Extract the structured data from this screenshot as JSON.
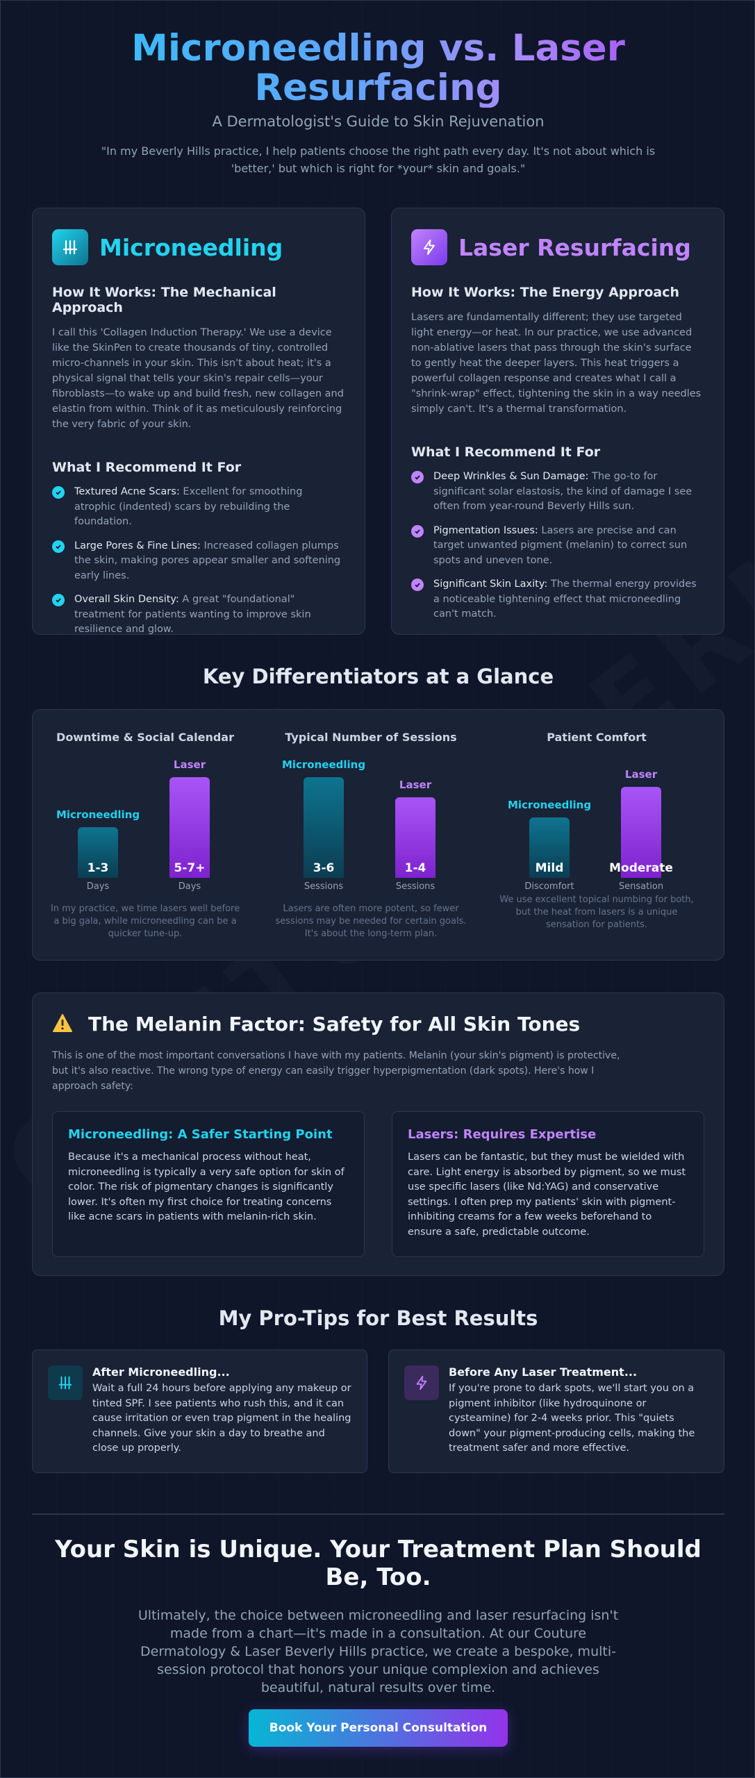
{
  "hero": {
    "title": "Microneedling vs. Laser Resurfacing",
    "subtitle": "A Dermatologist's Guide to Skin Rejuvenation",
    "quote": "\"In my Beverly Hills practice, I help patients choose the right path every day. It's not about which is 'better,' but which is right for *your* skin and goals.\""
  },
  "watermark": "COUTUREDERMA.COM",
  "microneedling": {
    "title": "Microneedling",
    "how_title": "How It Works: The Mechanical Approach",
    "how_text": "I call this 'Collagen Induction Therapy.' We use a device like the SkinPen to create thousands of tiny, controlled micro-channels in your skin. This isn't about heat; it's a physical signal that tells your skin's repair cells—your fibroblasts—to wake up and build fresh, new collagen and elastin from within. Think of it as meticulously reinforcing the very fabric of your skin.",
    "rec_title": "What I Recommend It For",
    "recs": [
      {
        "bold": "Textured Acne Scars:",
        "text": " Excellent for smoothing atrophic (indented) scars by rebuilding the foundation."
      },
      {
        "bold": "Large Pores & Fine Lines:",
        "text": " Increased collagen plumps the skin, making pores appear smaller and softening early lines."
      },
      {
        "bold": "Overall Skin Density:",
        "text": " A great \"foundational\" treatment for patients wanting to improve skin resilience and glow."
      }
    ]
  },
  "laser": {
    "title": "Laser Resurfacing",
    "how_title": "How It Works: The Energy Approach",
    "how_text": "Lasers are fundamentally different; they use targeted light energy—or heat. In our practice, we use advanced non-ablative lasers that pass through the skin's surface to gently heat the deeper layers. This heat triggers a powerful collagen response and creates what I call a \"shrink-wrap\" effect, tightening the skin in a way needles simply can't. It's a thermal transformation.",
    "rec_title": "What I Recommend It For",
    "recs": [
      {
        "bold": "Deep Wrinkles & Sun Damage:",
        "text": " The go-to for significant solar elastosis, the kind of damage I see often from year-round Beverly Hills sun."
      },
      {
        "bold": "Pigmentation Issues:",
        "text": " Lasers are precise and can target unwanted pigment (melanin) to correct sun spots and uneven tone."
      },
      {
        "bold": "Significant Skin Laxity:",
        "text": " The thermal energy provides a noticeable tightening effect that microneedling can't match."
      }
    ]
  },
  "differentiators": {
    "title": "Key Differentiators at a Glance",
    "columns": [
      {
        "title": "Downtime & Social Calendar",
        "micro": {
          "label": "Microneedling",
          "value": "1-3",
          "unit": "Days",
          "level": 0.5
        },
        "laser": {
          "label": "Laser",
          "value": "5-7+",
          "unit": "Days",
          "level": 1.0
        },
        "note": "In my practice, we time lasers well before a big gala, while microneedling can be a quicker tune-up."
      },
      {
        "title": "Typical Number of Sessions",
        "micro": {
          "label": "Microneedling",
          "value": "3-6",
          "unit": "Sessions",
          "level": 1.0
        },
        "laser": {
          "label": "Laser",
          "value": "1-4",
          "unit": "Sessions",
          "level": 0.8
        },
        "note": "Lasers are often more potent, so fewer sessions may be needed for certain goals. It's about the long-term plan."
      },
      {
        "title": "Patient Comfort",
        "micro": {
          "label": "Microneedling",
          "value": "Mild",
          "unit": "Discomfort",
          "level": 0.6
        },
        "laser": {
          "label": "Laser",
          "value": "Moderate",
          "unit": "Sensation",
          "level": 0.9
        },
        "note": "We use excellent topical numbing for both, but the heat from lasers is a unique sensation for patients."
      }
    ]
  },
  "melanin": {
    "title": "The Melanin Factor: Safety for All Skin Tones",
    "intro": "This is one of the most important conversations I have with my patients. Melanin (your skin's pigment) is protective, but it's also reactive. The wrong type of energy can easily trigger hyperpigmentation (dark spots). Here's how I approach safety:",
    "micro_title": "Microneedling: A Safer Starting Point",
    "micro_text": "Because it's a mechanical process without heat, microneedling is typically a very safe option for skin of color. The risk of pigmentary changes is significantly lower. It's often my first choice for treating concerns like acne scars in patients with melanin-rich skin.",
    "laser_title": "Lasers: Requires Expertise",
    "laser_text": "Lasers can be fantastic, but they must be wielded with care. Light energy is absorbed by pigment, so we must use specific lasers (like Nd:YAG) and conservative settings. I often prep my patients' skin with pigment-inhibiting creams for a few weeks beforehand to ensure a safe, predictable outcome."
  },
  "tips": {
    "title": "My Pro-Tips for Best Results",
    "after_title": "After Microneedling...",
    "after_text": "Wait a full 24 hours before applying any makeup or tinted SPF. I see patients who rush this, and it can cause irritation or even trap pigment in the healing channels. Give your skin a day to breathe and close up properly.",
    "before_title": "Before Any Laser Treatment...",
    "before_text": "If you're prone to dark spots, we'll start you on a pigment inhibitor (like hydroquinone or cysteamine) for 2-4 weeks prior. This \"quiets down\" your pigment-producing cells, making the treatment safer and more effective."
  },
  "closing": {
    "title": "Your Skin is Unique. Your Treatment Plan Should Be, Too.",
    "text": "Ultimately, the choice between microneedling and laser resurfacing isn't made from a chart—it's made in a consultation. At our Couture Dermatology & Laser Beverly Hills practice, we create a bespoke, multi-session protocol that honors your unique complexion and achieves beautiful, natural results over time.",
    "cta": "Book Your Personal Consultation"
  },
  "colors": {
    "teal": "#22d3ee",
    "purple": "#c084fc",
    "background": "#0f1629"
  }
}
